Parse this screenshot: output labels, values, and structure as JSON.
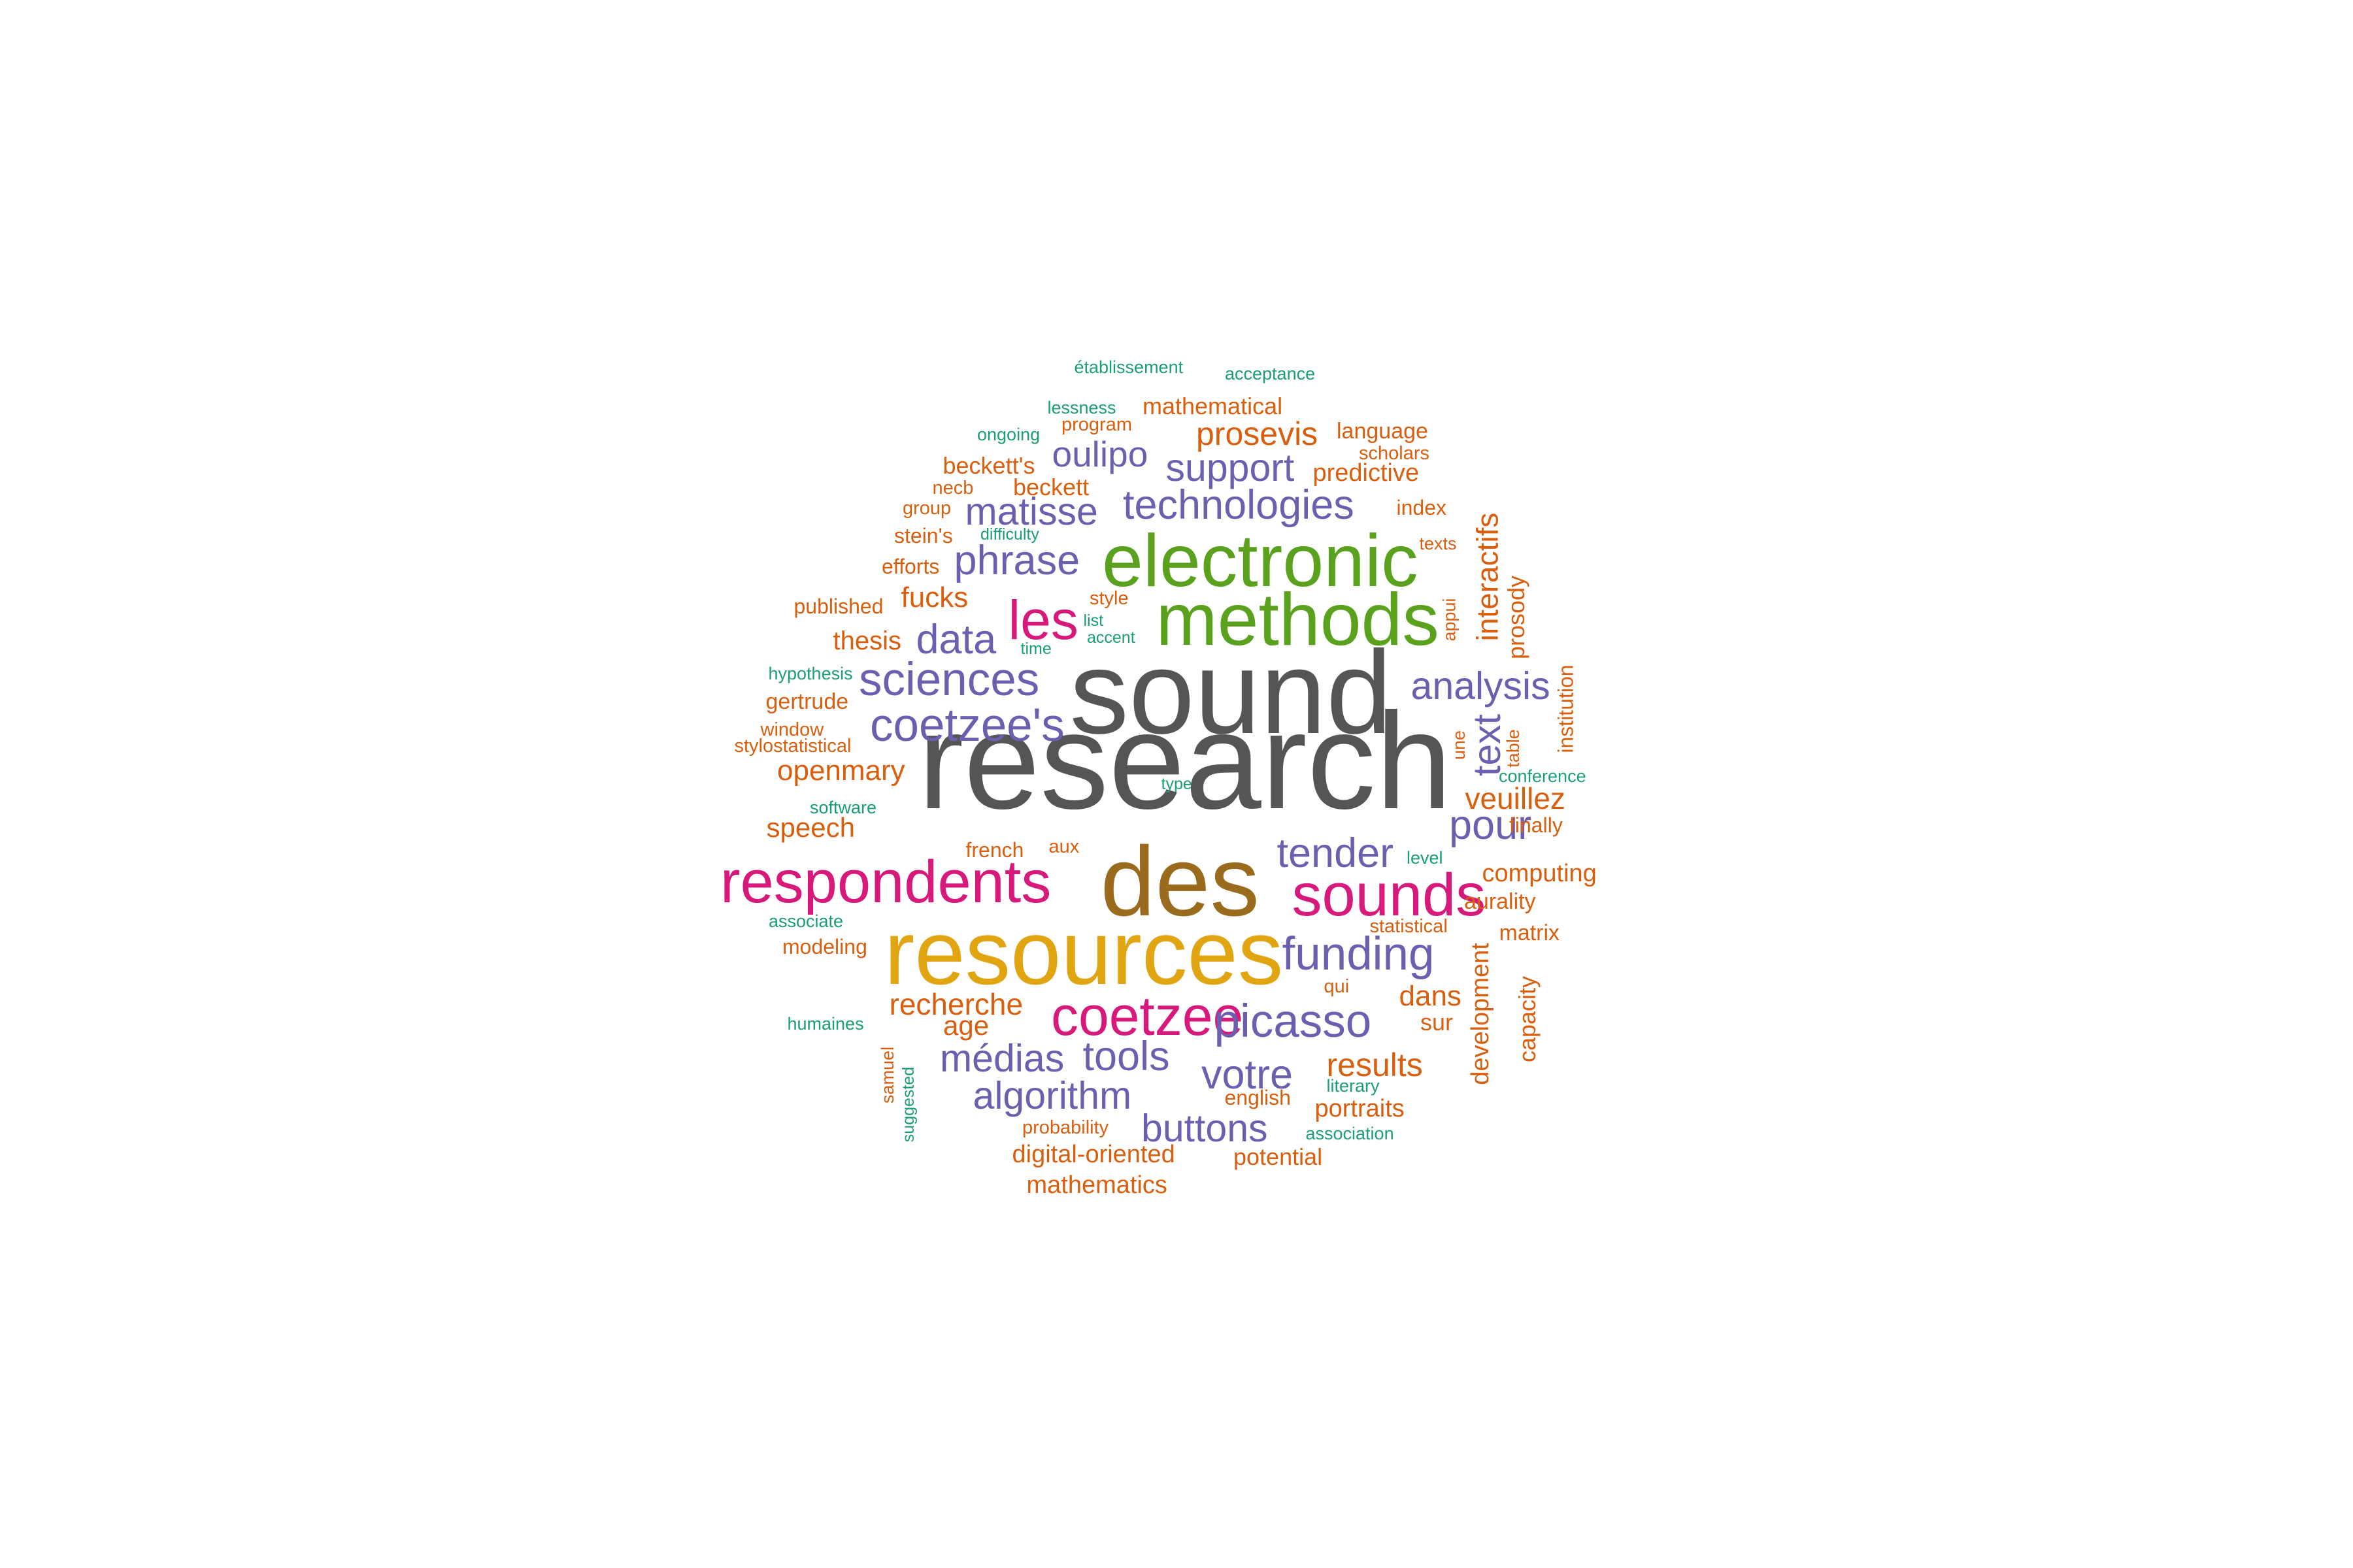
{
  "palette": {
    "grey": "#555555",
    "brown": "#9a6b1d",
    "gold": "#e0a511",
    "green": "#5aa21e",
    "pink": "#d6197a",
    "purple": "#6d5fb0",
    "orange": "#d95f0e",
    "teal": "#1b9e77"
  },
  "words": [
    {
      "text": "research",
      "color": "grey",
      "weight": 1.0
    },
    {
      "text": "sound",
      "color": "grey",
      "weight": 0.86
    },
    {
      "text": "des",
      "color": "brown",
      "weight": 0.72
    },
    {
      "text": "resources",
      "color": "gold",
      "weight": 0.66
    },
    {
      "text": "methods",
      "color": "green",
      "weight": 0.54
    },
    {
      "text": "electronic",
      "color": "green",
      "weight": 0.54
    },
    {
      "text": "respondents",
      "color": "pink",
      "weight": 0.44
    },
    {
      "text": "sounds",
      "color": "pink",
      "weight": 0.44
    },
    {
      "text": "les",
      "color": "pink",
      "weight": 0.4
    },
    {
      "text": "coetzee",
      "color": "pink",
      "weight": 0.4
    },
    {
      "text": "sciences",
      "color": "purple",
      "weight": 0.34
    },
    {
      "text": "coetzee's",
      "color": "purple",
      "weight": 0.34
    },
    {
      "text": "funding",
      "color": "purple",
      "weight": 0.34
    },
    {
      "text": "picasso",
      "color": "purple",
      "weight": 0.34
    },
    {
      "text": "technologies",
      "color": "purple",
      "weight": 0.3
    },
    {
      "text": "phrase",
      "color": "purple",
      "weight": 0.3
    },
    {
      "text": "data",
      "color": "purple",
      "weight": 0.3
    },
    {
      "text": "analysis",
      "color": "purple",
      "weight": 0.28
    },
    {
      "text": "tender",
      "color": "purple",
      "weight": 0.3
    },
    {
      "text": "pour",
      "color": "purple",
      "weight": 0.3
    },
    {
      "text": "text",
      "color": "purple",
      "weight": 0.28
    },
    {
      "text": "matisse",
      "color": "purple",
      "weight": 0.28
    },
    {
      "text": "support",
      "color": "purple",
      "weight": 0.28
    },
    {
      "text": "oulipo",
      "color": "purple",
      "weight": 0.26
    },
    {
      "text": "médias",
      "color": "purple",
      "weight": 0.28
    },
    {
      "text": "tools",
      "color": "purple",
      "weight": 0.3
    },
    {
      "text": "votre",
      "color": "purple",
      "weight": 0.3
    },
    {
      "text": "algorithm",
      "color": "purple",
      "weight": 0.28
    },
    {
      "text": "buttons",
      "color": "purple",
      "weight": 0.28
    },
    {
      "text": "prosevis",
      "color": "orange",
      "weight": 0.24
    },
    {
      "text": "interactifs",
      "color": "orange",
      "weight": 0.22
    },
    {
      "text": "veuillez",
      "color": "orange",
      "weight": 0.22
    },
    {
      "text": "results",
      "color": "orange",
      "weight": 0.24
    },
    {
      "text": "recherche",
      "color": "orange",
      "weight": 0.22
    },
    {
      "text": "openmary",
      "color": "orange",
      "weight": 0.21
    },
    {
      "text": "fucks",
      "color": "orange",
      "weight": 0.21
    },
    {
      "text": "age",
      "color": "orange",
      "weight": 0.2
    },
    {
      "text": "dans",
      "color": "orange",
      "weight": 0.21
    },
    {
      "text": "speech",
      "color": "orange",
      "weight": 0.2
    },
    {
      "text": "thesis",
      "color": "orange",
      "weight": 0.19
    },
    {
      "text": "predictive",
      "color": "orange",
      "weight": 0.18
    },
    {
      "text": "digital-oriented",
      "color": "orange",
      "weight": 0.18
    },
    {
      "text": "mathematics",
      "color": "orange",
      "weight": 0.18
    },
    {
      "text": "portraits",
      "color": "orange",
      "weight": 0.18
    },
    {
      "text": "computing",
      "color": "orange",
      "weight": 0.18
    },
    {
      "text": "potential",
      "color": "orange",
      "weight": 0.17
    },
    {
      "text": "development",
      "color": "orange",
      "weight": 0.18
    },
    {
      "text": "capacity",
      "color": "orange",
      "weight": 0.17
    },
    {
      "text": "prosody",
      "color": "orange",
      "weight": 0.17
    },
    {
      "text": "gertrude",
      "color": "orange",
      "weight": 0.16
    },
    {
      "text": "beckett's",
      "color": "orange",
      "weight": 0.17
    },
    {
      "text": "beckett",
      "color": "orange",
      "weight": 0.17
    },
    {
      "text": "mathematical",
      "color": "orange",
      "weight": 0.17
    },
    {
      "text": "language",
      "color": "orange",
      "weight": 0.16
    },
    {
      "text": "aurality",
      "color": "orange",
      "weight": 0.16
    },
    {
      "text": "matrix",
      "color": "orange",
      "weight": 0.16
    },
    {
      "text": "sur",
      "color": "orange",
      "weight": 0.17
    },
    {
      "text": "published",
      "color": "orange",
      "weight": 0.15
    },
    {
      "text": "efforts",
      "color": "orange",
      "weight": 0.15
    },
    {
      "text": "stein's",
      "color": "orange",
      "weight": 0.15
    },
    {
      "text": "modeling",
      "color": "orange",
      "weight": 0.15
    },
    {
      "text": "finally",
      "color": "orange",
      "weight": 0.15
    },
    {
      "text": "english",
      "color": "orange",
      "weight": 0.15
    },
    {
      "text": "index",
      "color": "orange",
      "weight": 0.15
    },
    {
      "text": "institution",
      "color": "orange",
      "weight": 0.15
    },
    {
      "text": "scholars",
      "color": "orange",
      "weight": 0.14
    },
    {
      "text": "program",
      "color": "orange",
      "weight": 0.14
    },
    {
      "text": "group",
      "color": "orange",
      "weight": 0.14
    },
    {
      "text": "necb",
      "color": "orange",
      "weight": 0.14
    },
    {
      "text": "window",
      "color": "orange",
      "weight": 0.14
    },
    {
      "text": "stylostatistical",
      "color": "orange",
      "weight": 0.14
    },
    {
      "text": "french",
      "color": "orange",
      "weight": 0.15
    },
    {
      "text": "aux",
      "color": "orange",
      "weight": 0.14
    },
    {
      "text": "qui",
      "color": "orange",
      "weight": 0.14
    },
    {
      "text": "probability",
      "color": "orange",
      "weight": 0.14
    },
    {
      "text": "statistical",
      "color": "orange",
      "weight": 0.14
    },
    {
      "text": "style",
      "color": "orange",
      "weight": 0.14
    },
    {
      "text": "texts",
      "color": "orange",
      "weight": 0.13
    },
    {
      "text": "samuel",
      "color": "orange",
      "weight": 0.13
    },
    {
      "text": "une",
      "color": "orange",
      "weight": 0.13
    },
    {
      "text": "table",
      "color": "orange",
      "weight": 0.13
    },
    {
      "text": "appui",
      "color": "orange",
      "weight": 0.13
    },
    {
      "text": "établissement",
      "color": "teal",
      "weight": 0.13
    },
    {
      "text": "acceptance",
      "color": "teal",
      "weight": 0.13
    },
    {
      "text": "lessness",
      "color": "teal",
      "weight": 0.13
    },
    {
      "text": "ongoing",
      "color": "teal",
      "weight": 0.13
    },
    {
      "text": "difficulty",
      "color": "teal",
      "weight": 0.12
    },
    {
      "text": "list",
      "color": "teal",
      "weight": 0.12
    },
    {
      "text": "accent",
      "color": "teal",
      "weight": 0.12
    },
    {
      "text": "time",
      "color": "teal",
      "weight": 0.12
    },
    {
      "text": "hypothesis",
      "color": "teal",
      "weight": 0.13
    },
    {
      "text": "software",
      "color": "teal",
      "weight": 0.13
    },
    {
      "text": "associate",
      "color": "teal",
      "weight": 0.13
    },
    {
      "text": "humaines",
      "color": "teal",
      "weight": 0.13
    },
    {
      "text": "suggested",
      "color": "teal",
      "weight": 0.12
    },
    {
      "text": "literary",
      "color": "teal",
      "weight": 0.13
    },
    {
      "text": "association",
      "color": "teal",
      "weight": 0.13
    },
    {
      "text": "conference",
      "color": "teal",
      "weight": 0.13
    },
    {
      "text": "level",
      "color": "teal",
      "weight": 0.13
    },
    {
      "text": "type",
      "color": "teal",
      "weight": 0.12
    }
  ]
}
